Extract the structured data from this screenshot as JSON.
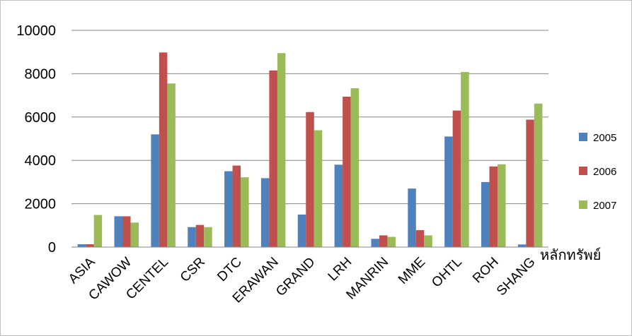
{
  "chart_data": {
    "type": "bar",
    "title": "",
    "xlabel": "หลักทรัพย์",
    "ylabel": "",
    "ylim": [
      0,
      10000
    ],
    "yticks": [
      0,
      2000,
      4000,
      6000,
      8000,
      10000
    ],
    "grid": true,
    "legend_position": "right",
    "categories": [
      "ASIA",
      "CAWOW",
      "CENTEL",
      "CSR",
      "DTC",
      "ERAWAN",
      "GRAND",
      "LRH",
      "MANRIN",
      "MME",
      "OHTL",
      "ROH",
      "SHANG"
    ],
    "series": [
      {
        "name": "2005",
        "color": "#4F81BD",
        "values": [
          130,
          1420,
          5200,
          920,
          3500,
          3180,
          1500,
          3800,
          380,
          2700,
          5100,
          3000,
          120
        ]
      },
      {
        "name": "2006",
        "color": "#C0504D",
        "values": [
          130,
          1420,
          8980,
          1020,
          3760,
          8150,
          6230,
          6940,
          540,
          780,
          6300,
          3720,
          5880
        ]
      },
      {
        "name": "2007",
        "color": "#9BBB59",
        "values": [
          1480,
          1130,
          7550,
          920,
          3220,
          8950,
          5390,
          7330,
          470,
          540,
          8080,
          3820,
          6620
        ]
      }
    ]
  }
}
